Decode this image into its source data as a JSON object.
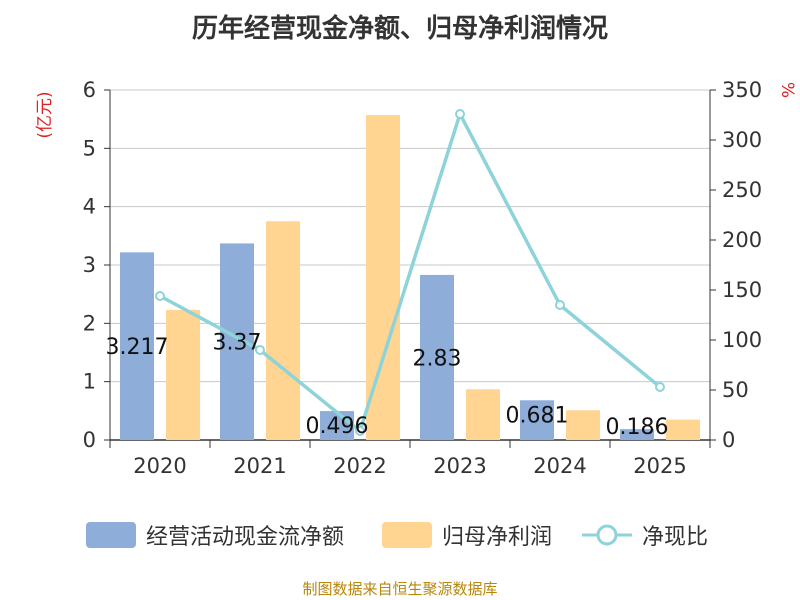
{
  "title": "历年经营现金净额、归母净利润情况",
  "source": "制图数据来自恒生聚源数据库",
  "chart_data": {
    "type": "bar",
    "categories": [
      "2020",
      "2021",
      "2022",
      "2023",
      "2024",
      "2025"
    ],
    "series": [
      {
        "name": "经营活动现金流净额",
        "type": "bar",
        "axis": "left",
        "color": "#8eadd9",
        "values": [
          3.217,
          3.37,
          0.496,
          2.83,
          0.681,
          0.186
        ]
      },
      {
        "name": "归母净利润",
        "type": "bar",
        "axis": "left",
        "color": "#ffd591",
        "values": [
          2.23,
          3.75,
          5.57,
          0.87,
          0.51,
          0.35
        ]
      },
      {
        "name": "净现比",
        "type": "line",
        "axis": "right",
        "color": "#8dd3d9",
        "values": [
          144,
          90,
          9,
          326,
          135,
          53
        ]
      }
    ],
    "data_labels": [
      "3.217",
      "3.37",
      "0.496",
      "2.83",
      "0.681",
      "0.186"
    ],
    "ylabel_left": "(亿元)",
    "ylabel_right": "%",
    "ylim_left": [
      0,
      6
    ],
    "yticks_left": [
      "0",
      "1",
      "2",
      "3",
      "4",
      "5",
      "6"
    ],
    "ylim_right": [
      0,
      350
    ],
    "yticks_right": [
      "0",
      "50",
      "100",
      "150",
      "200",
      "250",
      "300",
      "350"
    ],
    "grid": true,
    "legend_position": "bottom"
  }
}
